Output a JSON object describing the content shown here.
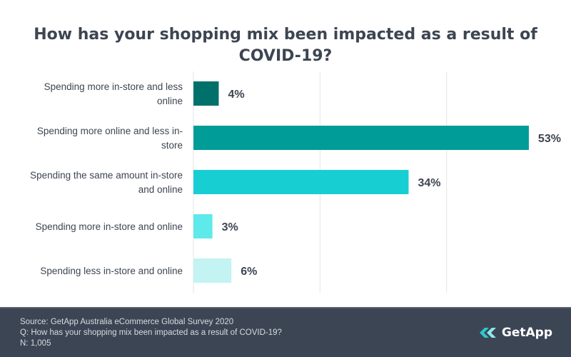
{
  "chart_data": {
    "type": "bar",
    "orientation": "horizontal",
    "title": "How has your shopping mix been impacted as a result of COVID-19?",
    "categories": [
      [
        "Spending more in-store and less",
        "online"
      ],
      [
        "Spending more online and less in-",
        "store"
      ],
      [
        "Spending the same amount in-store",
        "and online"
      ],
      [
        "Spending more in-store and online"
      ],
      [
        "Spending less in-store and online"
      ]
    ],
    "values": [
      4,
      53,
      34,
      3,
      6
    ],
    "value_labels": [
      "4%",
      "53%",
      "34%",
      "3%",
      "6%"
    ],
    "bar_colors": [
      "#00706b",
      "#009c98",
      "#17cfd3",
      "#5ee9ea",
      "#c3f3f3"
    ],
    "xlim": [
      0,
      60
    ],
    "gridlines_at": [
      0,
      20,
      40
    ],
    "grid": true,
    "legend": "none"
  },
  "footer": {
    "source": "Source: GetApp Australia eCommerce Global Survey 2020",
    "question": "Q: How has your shopping mix been impacted as a result of COVID-19?",
    "sample": "N: 1,005"
  },
  "logo": {
    "text": "GetApp",
    "icon": "getapp-chevrons-icon",
    "color": "#2fc7d0"
  }
}
